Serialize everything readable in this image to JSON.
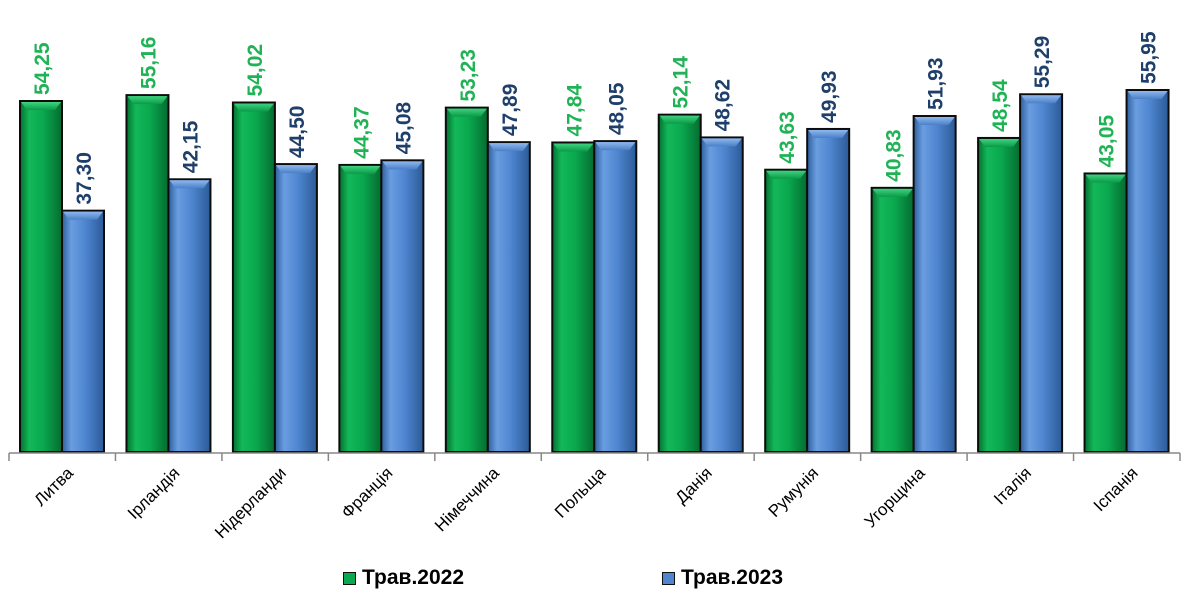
{
  "chart_data": {
    "type": "bar",
    "categories": [
      "Литва",
      "Ірландія",
      "Нідерланди",
      "Франція",
      "Німеччина",
      "Польща",
      "Данія",
      "Румунія",
      "Угорщина",
      "Італія",
      "Іспанія"
    ],
    "series": [
      {
        "name": "Трав.2022",
        "color": "#0aa84f",
        "label_color": "#1fb356",
        "values": [
          54.25,
          55.16,
          54.02,
          44.37,
          53.23,
          47.84,
          52.14,
          43.63,
          40.83,
          48.54,
          43.05
        ],
        "labels": [
          "54,25",
          "55,16",
          "54,02",
          "44,37",
          "53,23",
          "47,84",
          "52,14",
          "43,63",
          "40,83",
          "48,54",
          "43,05"
        ]
      },
      {
        "name": "Трав.2023",
        "color": "#4f86d0",
        "label_color": "#1f3f6b",
        "values": [
          37.3,
          42.15,
          44.5,
          45.08,
          47.89,
          48.05,
          48.62,
          49.93,
          51.93,
          55.29,
          55.95
        ],
        "labels": [
          "37,30",
          "42,15",
          "44,50",
          "45,08",
          "47,89",
          "48,05",
          "48,62",
          "49,93",
          "51,93",
          "55,29",
          "55,95"
        ]
      }
    ],
    "ylim": [
      0,
      56
    ],
    "grid": false,
    "legend_position": "bottom-center"
  }
}
